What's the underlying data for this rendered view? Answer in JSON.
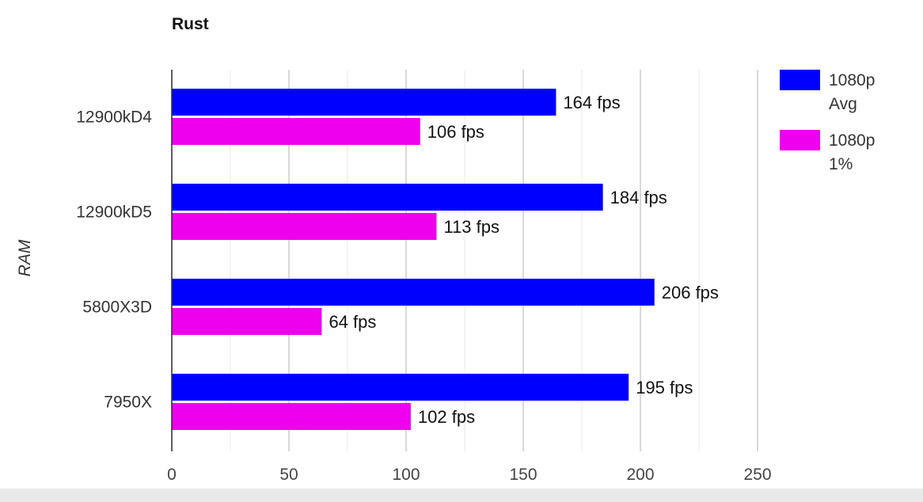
{
  "chart_data": {
    "type": "bar",
    "orientation": "horizontal",
    "title": "Rust",
    "ylabel": "RAM",
    "xlabel": "",
    "categories": [
      "12900kD4",
      "12900kD5",
      "5800X3D",
      "7950X"
    ],
    "series": [
      {
        "name": [
          "1080p",
          "Avg"
        ],
        "color": "#0000ff",
        "values": [
          164,
          184,
          206,
          195
        ],
        "labels": [
          "164 fps",
          "184 fps",
          "206 fps",
          "195 fps"
        ]
      },
      {
        "name": [
          "1080p",
          "1%"
        ],
        "color": "#ee00ee",
        "values": [
          106,
          113,
          64,
          102
        ],
        "labels": [
          "106 fps",
          "113 fps",
          "64 fps",
          "102 fps"
        ]
      }
    ],
    "xlim": [
      0,
      250
    ],
    "xticks": [
      0,
      50,
      100,
      150,
      200,
      250
    ],
    "xtick_labels": [
      "0",
      "50",
      "100",
      "150",
      "200",
      "250"
    ],
    "grid": true,
    "legend_position": "right"
  }
}
